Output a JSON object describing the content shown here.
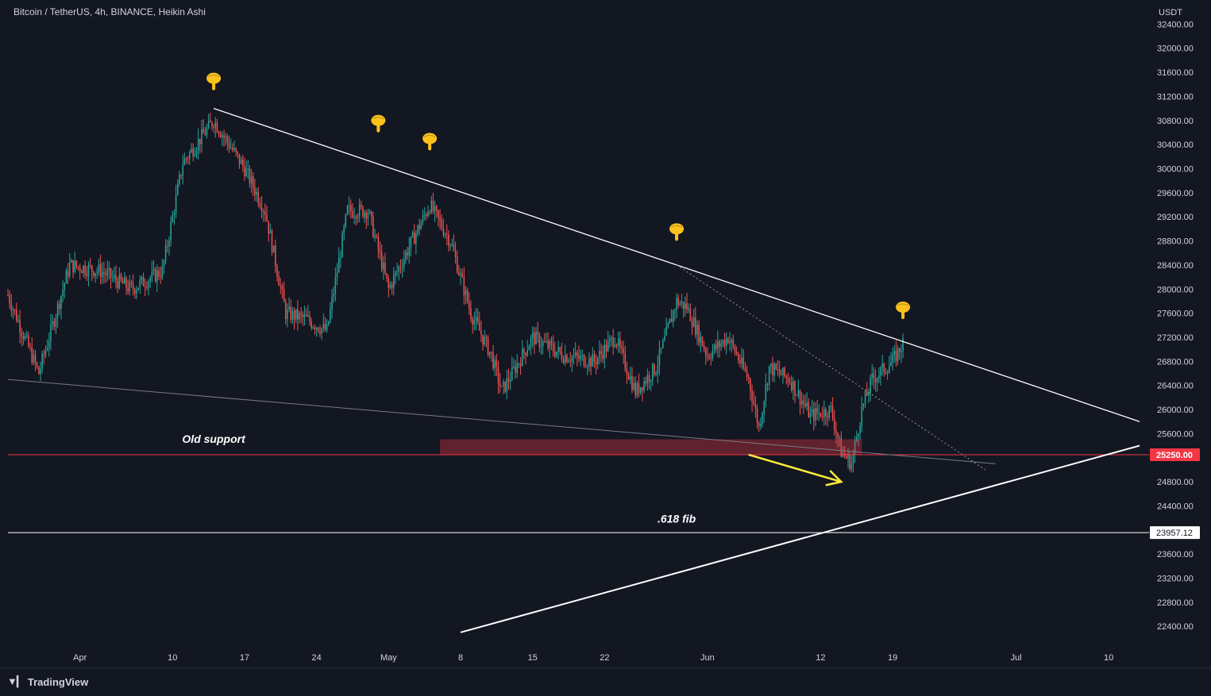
{
  "app": {
    "legend": "Bitcoin / TetherUS, 4h, BINANCE, Heikin Ashi",
    "brand": "TradingView",
    "brand_icon": "tradingview-logo-icon"
  },
  "chart_data": {
    "type": "candlestick",
    "symbol": "Bitcoin / TetherUS",
    "interval": "4h",
    "exchange": "BINANCE",
    "chart_style": "Heikin Ashi",
    "currency_label": "USDT",
    "ylim": [
      22100,
      32800
    ],
    "xlim": [
      "2023-03-25",
      "2023-07-14"
    ],
    "y_ticks": [
      "32400.00",
      "32000.00",
      "31600.00",
      "31200.00",
      "30800.00",
      "30400.00",
      "30000.00",
      "29600.00",
      "29200.00",
      "28800.00",
      "28400.00",
      "28000.00",
      "27600.00",
      "27200.00",
      "26800.00",
      "26400.00",
      "26000.00",
      "25600.00",
      "25200.00",
      "24800.00",
      "24400.00",
      "24000.00",
      "23600.00",
      "23200.00",
      "22800.00",
      "22400.00"
    ],
    "x_ticks": [
      {
        "label": "Apr",
        "date": "2023-04-01"
      },
      {
        "label": "10",
        "date": "2023-04-10"
      },
      {
        "label": "17",
        "date": "2023-04-17"
      },
      {
        "label": "24",
        "date": "2023-04-24"
      },
      {
        "label": "May",
        "date": "2023-05-01"
      },
      {
        "label": "8",
        "date": "2023-05-08"
      },
      {
        "label": "15",
        "date": "2023-05-15"
      },
      {
        "label": "22",
        "date": "2023-05-22"
      },
      {
        "label": "Jun",
        "date": "2023-06-01"
      },
      {
        "label": "12",
        "date": "2023-06-12"
      },
      {
        "label": "19",
        "date": "2023-06-19"
      },
      {
        "label": "Jul",
        "date": "2023-07-01"
      },
      {
        "label": "10",
        "date": "2023-07-10"
      }
    ],
    "colors": {
      "up": "#26a69a",
      "down": "#ef5350",
      "background": "#131722",
      "grid_text": "#d1d4dc",
      "support": "#f23645",
      "annotation_arrow": "#ffeb3b"
    },
    "price_path": [
      {
        "date": "2023-03-25",
        "close": 27900
      },
      {
        "date": "2023-03-28",
        "close": 26600
      },
      {
        "date": "2023-03-31",
        "close": 28400
      },
      {
        "date": "2023-04-03",
        "close": 28300
      },
      {
        "date": "2023-04-06",
        "close": 28000
      },
      {
        "date": "2023-04-09",
        "close": 28300
      },
      {
        "date": "2023-04-11",
        "close": 30100
      },
      {
        "date": "2023-04-14",
        "close": 30800
      },
      {
        "date": "2023-04-17",
        "close": 30000
      },
      {
        "date": "2023-04-19",
        "close": 29300
      },
      {
        "date": "2023-04-21",
        "close": 27600
      },
      {
        "date": "2023-04-23",
        "close": 27500
      },
      {
        "date": "2023-04-25",
        "close": 27300
      },
      {
        "date": "2023-04-27",
        "close": 29300
      },
      {
        "date": "2023-04-29",
        "close": 29300
      },
      {
        "date": "2023-05-01",
        "close": 28000
      },
      {
        "date": "2023-05-03",
        "close": 28700
      },
      {
        "date": "2023-05-05",
        "close": 29400
      },
      {
        "date": "2023-05-07",
        "close": 28800
      },
      {
        "date": "2023-05-09",
        "close": 27600
      },
      {
        "date": "2023-05-11",
        "close": 26900
      },
      {
        "date": "2023-05-12",
        "close": 26300
      },
      {
        "date": "2023-05-15",
        "close": 27200
      },
      {
        "date": "2023-05-18",
        "close": 26900
      },
      {
        "date": "2023-05-21",
        "close": 26800
      },
      {
        "date": "2023-05-23",
        "close": 27200
      },
      {
        "date": "2023-05-25",
        "close": 26300
      },
      {
        "date": "2023-05-27",
        "close": 26700
      },
      {
        "date": "2023-05-29",
        "close": 27800
      },
      {
        "date": "2023-05-30",
        "close": 27700
      },
      {
        "date": "2023-06-01",
        "close": 26900
      },
      {
        "date": "2023-06-03",
        "close": 27200
      },
      {
        "date": "2023-06-05",
        "close": 26500
      },
      {
        "date": "2023-06-06",
        "close": 25700
      },
      {
        "date": "2023-06-07",
        "close": 26700
      },
      {
        "date": "2023-06-09",
        "close": 26500
      },
      {
        "date": "2023-06-11",
        "close": 25900
      },
      {
        "date": "2023-06-13",
        "close": 26000
      },
      {
        "date": "2023-06-14",
        "close": 25300
      },
      {
        "date": "2023-06-15",
        "close": 25100
      },
      {
        "date": "2023-06-16",
        "close": 26000
      },
      {
        "date": "2023-06-17",
        "close": 26500
      },
      {
        "date": "2023-06-19",
        "close": 26800
      },
      {
        "date": "2023-06-20",
        "close": 27100
      }
    ],
    "horizontal_lines": [
      {
        "name": "old-support-line",
        "price": 25250.0,
        "label": "25250.00",
        "color": "#f23645"
      },
      {
        "name": "fib-618-line",
        "price": 23957.12,
        "label": "23957.12",
        "color": "#ffffff"
      }
    ],
    "support_zone": {
      "from": "2023-05-06",
      "to": "2023-06-16",
      "low": 25250,
      "high": 25400
    },
    "trendlines": [
      {
        "name": "descending-resistance-line",
        "from": {
          "date": "2023-04-14",
          "price": 31000
        },
        "to": {
          "date": "2023-07-13",
          "price": 25800
        },
        "color": "#ffffff",
        "width": 1.3
      },
      {
        "name": "ascending-support-line",
        "from": {
          "date": "2023-05-08",
          "price": 22300
        },
        "to": {
          "date": "2023-07-13",
          "price": 25400
        },
        "color": "#ffffff",
        "width": 2
      },
      {
        "name": "lower-channel-line",
        "from": {
          "date": "2023-03-25",
          "price": 26500
        },
        "to": {
          "date": "2023-06-29",
          "price": 25100
        },
        "color": "#787b86",
        "width": 1
      },
      {
        "name": "dotted-inner-trendline",
        "from": {
          "date": "2023-05-29",
          "price": 28400
        },
        "to": {
          "date": "2023-06-28",
          "price": 25000
        },
        "color": "#9598a1",
        "width": 1,
        "dotted": true
      }
    ],
    "annotations": [
      {
        "name": "old-support-label",
        "text": "Old support",
        "date": "2023-04-14",
        "price": 25450
      },
      {
        "name": "fib-label",
        "text": ".618 fib",
        "date": "2023-05-29",
        "price": 24120
      }
    ],
    "arrow": {
      "from": {
        "date": "2023-06-05",
        "price": 25250
      },
      "to": {
        "date": "2023-06-14",
        "price": 24800
      }
    },
    "markers": [
      {
        "icon": "pointing-hand-icon",
        "date": "2023-04-14",
        "price": 31500
      },
      {
        "icon": "pointing-hand-icon",
        "date": "2023-04-30",
        "price": 30800
      },
      {
        "icon": "pointing-hand-icon",
        "date": "2023-05-05",
        "price": 30500
      },
      {
        "icon": "pointing-hand-icon",
        "date": "2023-05-29",
        "price": 29000
      },
      {
        "icon": "pointing-hand-icon",
        "date": "2023-06-20",
        "price": 27700
      }
    ]
  }
}
